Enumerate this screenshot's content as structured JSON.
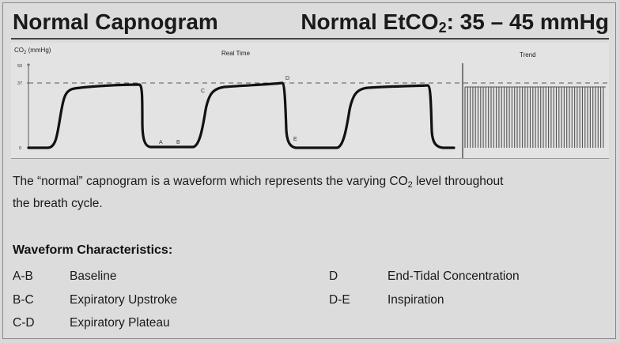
{
  "header": {
    "title": "Normal Capnogram",
    "range_prefix": "Normal EtCO",
    "range_sub": "2",
    "range_suffix": ": 35 – 45 mmHg"
  },
  "chart": {
    "y_axis_label_prefix": "CO",
    "y_axis_label_sub": "2",
    "y_axis_label_suffix": " (mmHg)",
    "realtime_label": "Real Time",
    "trend_label": "Trend",
    "y_ticks": [
      "50",
      "37",
      "0"
    ],
    "points": [
      "A",
      "B",
      "C",
      "D",
      "E"
    ]
  },
  "chart_data": {
    "type": "line",
    "ylabel": "CO2 (mmHg)",
    "ylim": [
      0,
      50
    ],
    "reference_line": 37,
    "series": [
      {
        "name": "Real Time",
        "x": [
          0,
          1,
          2,
          3,
          4,
          5,
          6,
          7,
          8,
          9,
          10,
          11,
          12,
          13,
          14,
          15,
          16,
          17,
          18,
          19,
          20,
          21,
          22,
          23,
          24,
          25,
          26,
          27,
          28,
          29,
          30
        ],
        "values": [
          0,
          0,
          0,
          2,
          20,
          32,
          33,
          34,
          35,
          35,
          35,
          2,
          0,
          0,
          0,
          2,
          20,
          32,
          33,
          34,
          35,
          36,
          36,
          2,
          0,
          0,
          0,
          2,
          20,
          32,
          33
        ]
      },
      {
        "name": "Trend",
        "pattern": "repeated peaks near 30 mmHg"
      }
    ]
  },
  "description": {
    "line1_prefix": "The “normal” capnogram is a waveform which represents the varying CO",
    "line1_sub": "2",
    "line1_suffix": " level throughout",
    "line2": "the breath cycle."
  },
  "characteristics": {
    "title": "Waveform Characteristics:",
    "items": [
      {
        "code": "A-B",
        "label": "Baseline"
      },
      {
        "code": "B-C",
        "label": "Expiratory Upstroke"
      },
      {
        "code": "C-D",
        "label": "Expiratory Plateau"
      },
      {
        "code": "D",
        "label": "End-Tidal Concentration"
      },
      {
        "code": "D-E",
        "label": "Inspiration"
      }
    ]
  }
}
